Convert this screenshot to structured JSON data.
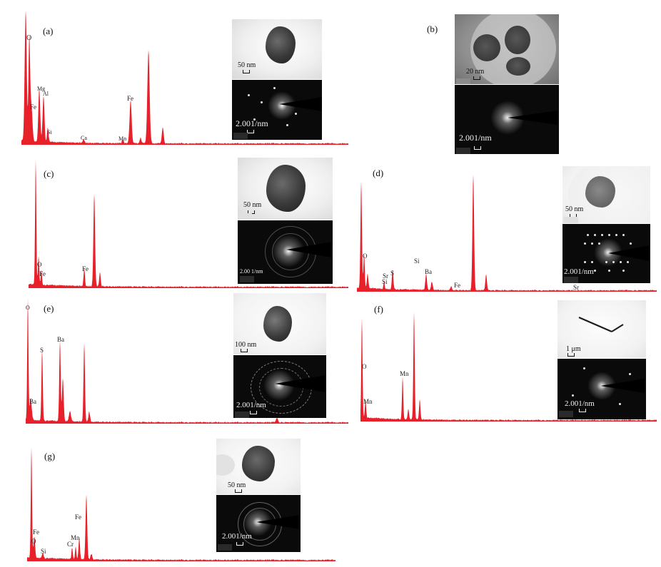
{
  "colors": {
    "spectrum": "#e8202a",
    "baseline": "#e8202a"
  },
  "panels": {
    "a": {
      "label": "(a)",
      "elements": [
        "O",
        "Fe",
        "Mg",
        "Al",
        "Si",
        "Ca",
        "Mn",
        "Fe"
      ],
      "tem_scale": "50 nm",
      "saed_scale": "2.001/nm"
    },
    "b": {
      "label": "(b)",
      "tem_scale": "20 nm",
      "saed_scale": "2.001/nm"
    },
    "c": {
      "label": "(c)",
      "elements": [
        "O",
        "Fe",
        "Fe"
      ],
      "tem_scale": "50 nm",
      "saed_scale": "2.00 1/nm"
    },
    "d": {
      "label": "(d)",
      "elements": [
        "O",
        "Si",
        "Sr",
        "Si",
        "S",
        "Ba",
        "Fe",
        "Sr"
      ],
      "tem_scale": "50 nm",
      "saed_scale": "2.001/nm"
    },
    "e": {
      "label": "(e)",
      "elements": [
        "O",
        "Ba",
        "S",
        "Ba"
      ],
      "tem_scale": "100 nm",
      "saed_scale": "2.001/nm"
    },
    "f": {
      "label": "(f)",
      "elements": [
        "O",
        "Mn",
        "Mn"
      ],
      "tem_scale": "1 μm",
      "saed_scale": "2.001/nm"
    },
    "g": {
      "label": "(g)",
      "elements": [
        "Fe",
        "O",
        "Si",
        "Cr",
        "Mn",
        "Fe"
      ],
      "tem_scale": "50 nm",
      "saed_scale": "2.001/nm"
    }
  }
}
